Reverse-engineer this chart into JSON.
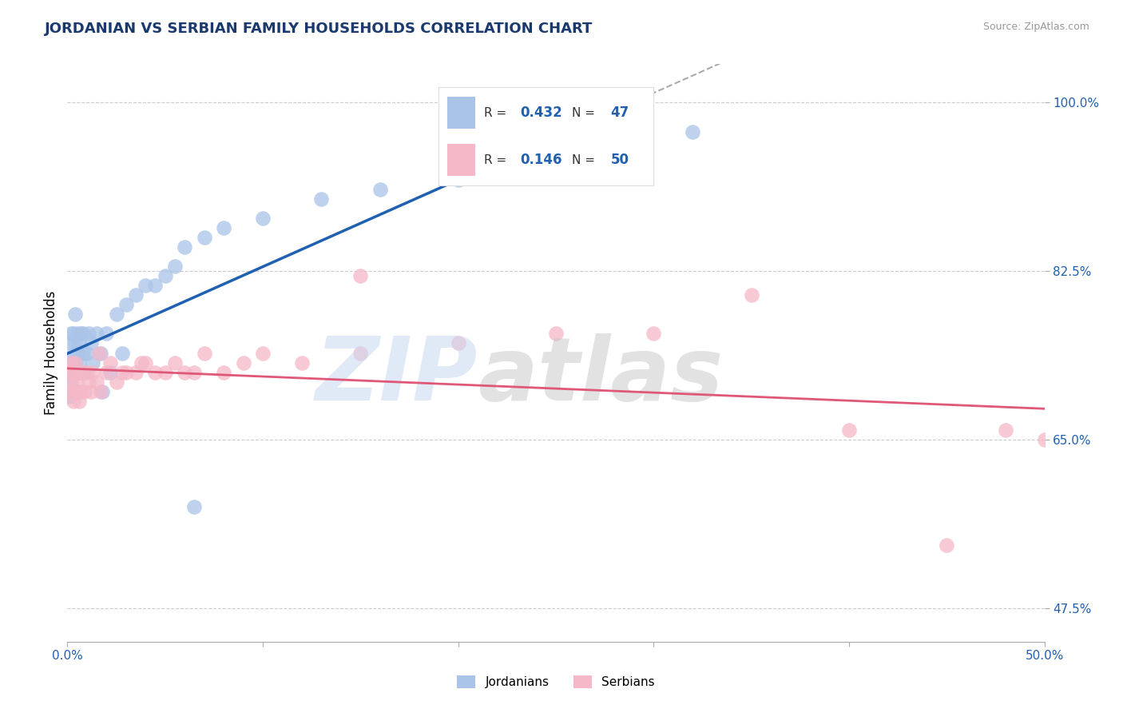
{
  "title": "JORDANIAN VS SERBIAN FAMILY HOUSEHOLDS CORRELATION CHART",
  "source_text": "Source: ZipAtlas.com",
  "ylabel": "Family Households",
  "xlim": [
    0.0,
    0.5
  ],
  "ylim": [
    0.44,
    1.04
  ],
  "xtick_values": [
    0.0,
    0.1,
    0.2,
    0.3,
    0.4,
    0.5
  ],
  "xtick_labels_show": [
    "0.0%",
    "",
    "",
    "",
    "",
    "50.0%"
  ],
  "ytick_values": [
    0.475,
    0.65,
    0.825,
    1.0
  ],
  "ytick_labels": [
    "47.5%",
    "65.0%",
    "82.5%",
    "100.0%"
  ],
  "grid_color": "#cccccc",
  "background_color": "#ffffff",
  "jordanian_color": "#aac4e8",
  "serbian_color": "#f5b8c8",
  "blue_line_color": "#2060b0",
  "pink_line_color": "#e05878",
  "dashed_line_color": "#aaaaaa",
  "R_jordanian": "0.432",
  "N_jordanian": "47",
  "R_serbian": "0.146",
  "N_serbian": "50",
  "legend_jordanians": "Jordanians",
  "legend_serbians": "Serbians",
  "jordanian_x": [
    0.001,
    0.001,
    0.002,
    0.002,
    0.002,
    0.003,
    0.003,
    0.003,
    0.004,
    0.004,
    0.004,
    0.005,
    0.005,
    0.005,
    0.006,
    0.006,
    0.007,
    0.007,
    0.008,
    0.008,
    0.009,
    0.01,
    0.011,
    0.012,
    0.013,
    0.015,
    0.017,
    0.02,
    0.025,
    0.03,
    0.035,
    0.04,
    0.05,
    0.06,
    0.07,
    0.08,
    0.1,
    0.13,
    0.16,
    0.2,
    0.018,
    0.022,
    0.028,
    0.045,
    0.055,
    0.065,
    0.32
  ],
  "jordanian_y": [
    0.695,
    0.71,
    0.73,
    0.75,
    0.76,
    0.72,
    0.74,
    0.76,
    0.73,
    0.75,
    0.78,
    0.72,
    0.74,
    0.76,
    0.73,
    0.75,
    0.72,
    0.76,
    0.74,
    0.76,
    0.72,
    0.74,
    0.76,
    0.75,
    0.73,
    0.76,
    0.74,
    0.76,
    0.78,
    0.79,
    0.8,
    0.81,
    0.82,
    0.85,
    0.86,
    0.87,
    0.88,
    0.9,
    0.91,
    0.92,
    0.7,
    0.72,
    0.74,
    0.81,
    0.83,
    0.58,
    0.97
  ],
  "serbian_x": [
    0.001,
    0.001,
    0.002,
    0.002,
    0.003,
    0.003,
    0.004,
    0.004,
    0.005,
    0.005,
    0.006,
    0.006,
    0.007,
    0.008,
    0.009,
    0.01,
    0.011,
    0.012,
    0.013,
    0.015,
    0.017,
    0.02,
    0.025,
    0.03,
    0.035,
    0.04,
    0.045,
    0.05,
    0.055,
    0.06,
    0.065,
    0.07,
    0.08,
    0.09,
    0.1,
    0.12,
    0.15,
    0.2,
    0.25,
    0.3,
    0.35,
    0.4,
    0.45,
    0.48,
    0.016,
    0.022,
    0.028,
    0.038,
    0.15,
    0.5
  ],
  "serbian_y": [
    0.7,
    0.72,
    0.71,
    0.73,
    0.69,
    0.72,
    0.7,
    0.73,
    0.71,
    0.7,
    0.72,
    0.69,
    0.7,
    0.72,
    0.7,
    0.72,
    0.71,
    0.7,
    0.72,
    0.71,
    0.7,
    0.72,
    0.71,
    0.72,
    0.72,
    0.73,
    0.72,
    0.72,
    0.73,
    0.72,
    0.72,
    0.74,
    0.72,
    0.73,
    0.74,
    0.73,
    0.74,
    0.75,
    0.76,
    0.76,
    0.8,
    0.66,
    0.54,
    0.66,
    0.74,
    0.73,
    0.72,
    0.73,
    0.82,
    0.65
  ]
}
